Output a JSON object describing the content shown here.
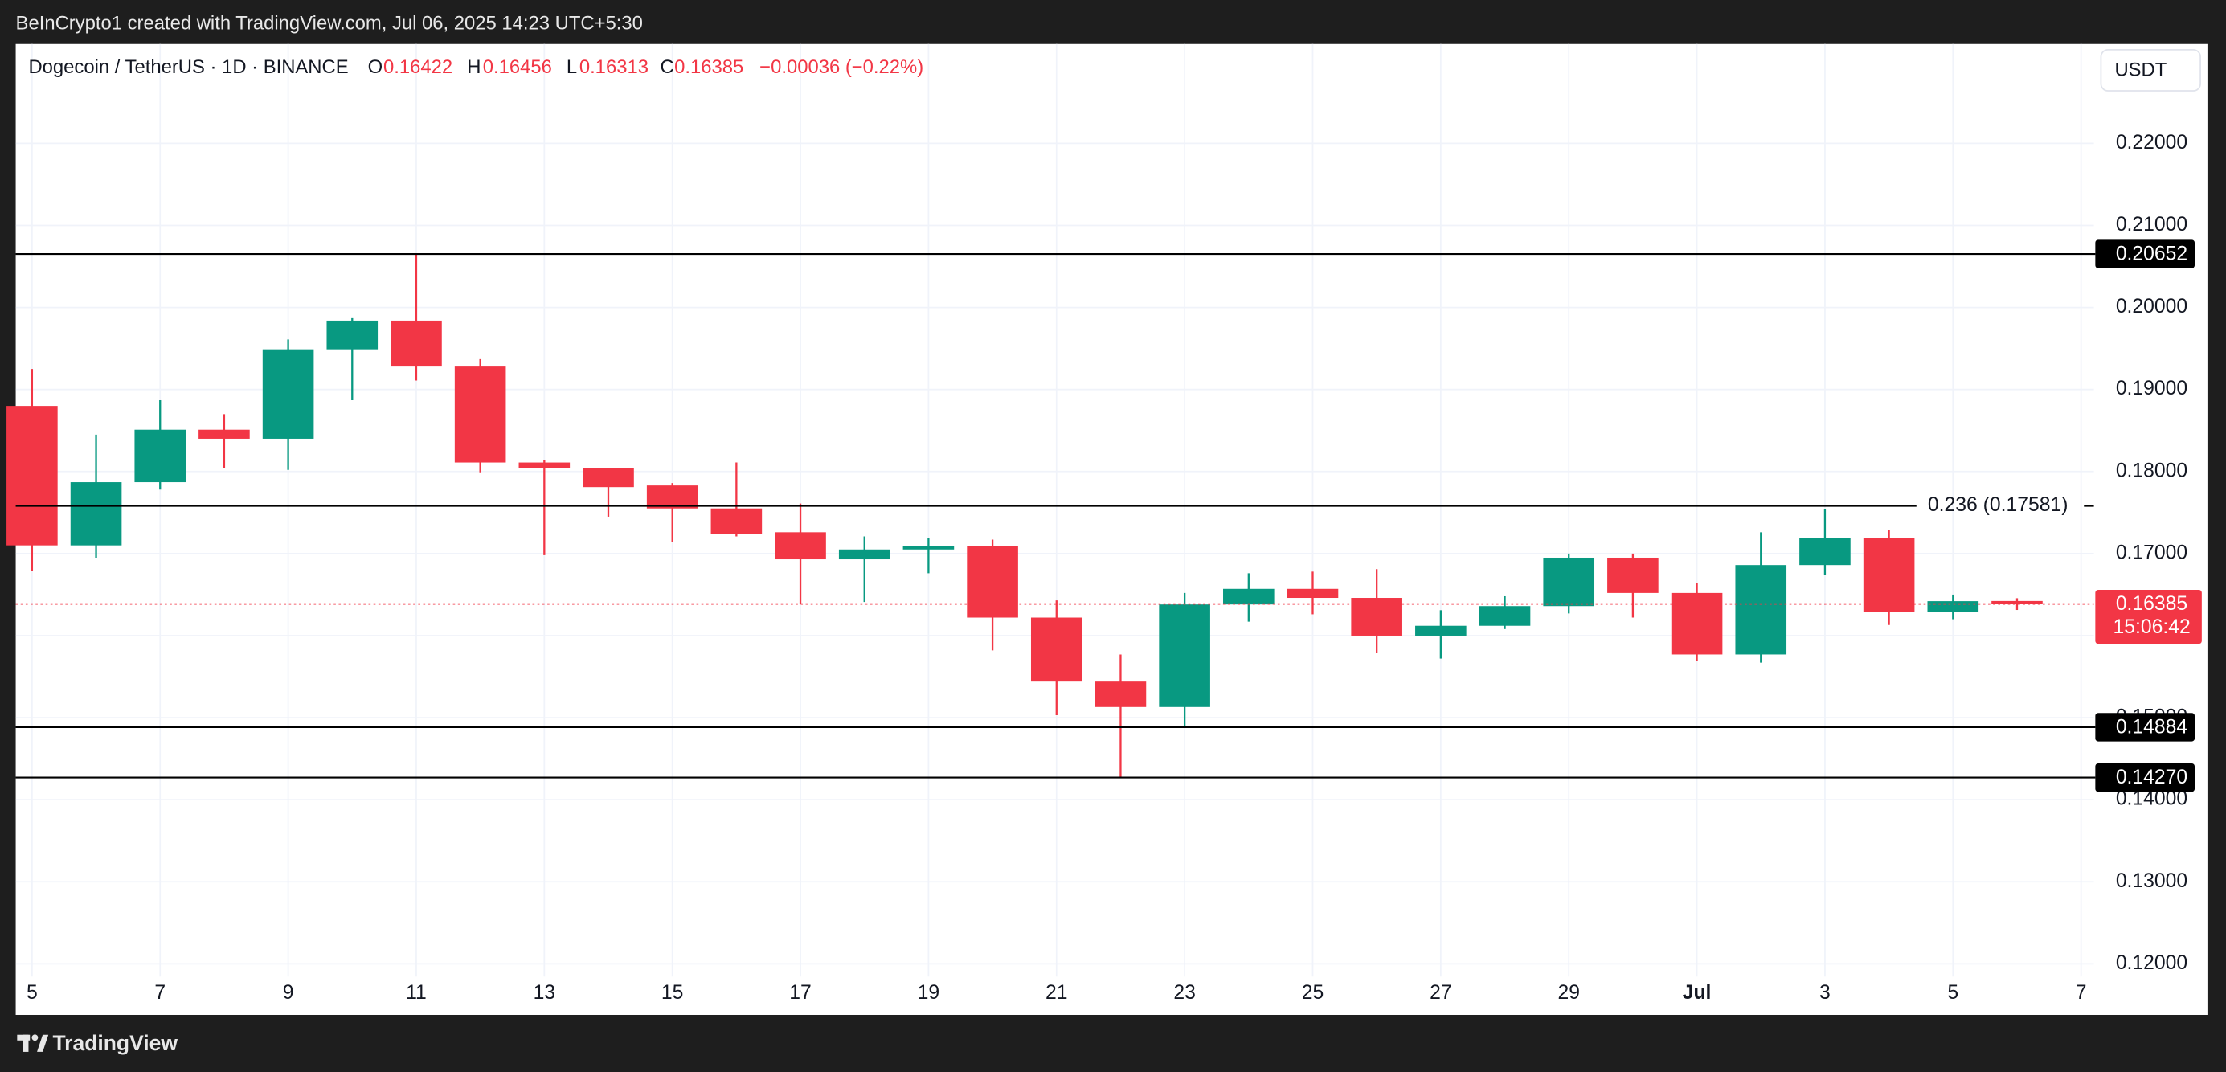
{
  "top_bar": "BeInCrypto1 created with TradingView.com, Jul 06, 2025 14:23 UTC+5:30",
  "footer": "TradingView",
  "chart_data": {
    "type": "candlestick",
    "title": "Dogecoin / TetherUS · 1D · BINANCE",
    "legend": {
      "o_label": "O",
      "open": 0.16422,
      "h_label": "H",
      "high": 0.16456,
      "l_label": "L",
      "low": 0.16313,
      "c_label": "C",
      "close": 0.16385,
      "change": "−0.00036 (−0.22%)"
    },
    "currency": "USDT",
    "open": [
      0.188,
      0.171,
      0.1787,
      0.1851,
      0.184,
      0.1949,
      0.1984,
      0.1928,
      0.1811,
      0.1804,
      0.1783,
      0.1755,
      0.1726,
      0.1693,
      0.1705,
      0.1709,
      0.1622,
      0.1544,
      0.1513,
      0.1638,
      0.1657,
      0.1646,
      0.16,
      0.1612,
      0.1636,
      0.1695,
      0.1652,
      0.1577,
      0.1686,
      0.1719,
      0.1629,
      0.16422
    ],
    "high": [
      0.1925,
      0.1845,
      0.1887,
      0.187,
      0.1961,
      0.1987,
      0.20652,
      0.1937,
      0.1814,
      0.1804,
      0.1786,
      0.1811,
      0.1761,
      0.1721,
      0.1719,
      0.1717,
      0.1643,
      0.1577,
      0.1652,
      0.1676,
      0.1678,
      0.1681,
      0.1631,
      0.1648,
      0.17,
      0.17,
      0.1664,
      0.1726,
      0.1754,
      0.1729,
      0.165,
      0.16456
    ],
    "low": [
      0.1679,
      0.1695,
      0.1778,
      0.1804,
      0.1802,
      0.1887,
      0.1911,
      0.1799,
      0.1698,
      0.1745,
      0.1714,
      0.1721,
      0.1639,
      0.1641,
      0.1676,
      0.1582,
      0.1503,
      0.1427,
      0.14884,
      0.1617,
      0.1626,
      0.1579,
      0.1572,
      0.1608,
      0.1627,
      0.1622,
      0.1569,
      0.1567,
      0.1674,
      0.1613,
      0.162,
      0.16313
    ],
    "close": [
      0.171,
      0.1787,
      0.1851,
      0.184,
      0.1949,
      0.1984,
      0.1928,
      0.1811,
      0.1804,
      0.1781,
      0.1755,
      0.1724,
      0.1693,
      0.1705,
      0.1709,
      0.1622,
      0.1544,
      0.1513,
      0.1638,
      0.1657,
      0.1646,
      0.16,
      0.1612,
      0.1636,
      0.1695,
      0.1652,
      0.1577,
      0.1686,
      0.1719,
      0.1629,
      0.1642,
      0.16385
    ],
    "up_color": "#089981",
    "down_color": "#f23645",
    "xlim": [
      -0.255,
      32.2
    ],
    "xticks": [
      {
        "value": 0,
        "label": "5"
      },
      {
        "value": 2,
        "label": "7"
      },
      {
        "value": 4,
        "label": "9"
      },
      {
        "value": 6,
        "label": "11"
      },
      {
        "value": 8,
        "label": "13"
      },
      {
        "value": 10,
        "label": "15"
      },
      {
        "value": 12,
        "label": "17"
      },
      {
        "value": 14,
        "label": "19"
      },
      {
        "value": 16,
        "label": "21"
      },
      {
        "value": 18,
        "label": "23"
      },
      {
        "value": 20,
        "label": "25"
      },
      {
        "value": 22,
        "label": "27"
      },
      {
        "value": 24,
        "label": "29"
      },
      {
        "value": 26,
        "label": "Jul"
      },
      {
        "value": 28,
        "label": "3"
      },
      {
        "value": 30,
        "label": "5"
      },
      {
        "value": 32,
        "label": "7"
      }
    ],
    "ylim": [
      0.11844,
      0.23211
    ],
    "yticks": [
      {
        "value": 0.12,
        "label": "0.12000"
      },
      {
        "value": 0.13,
        "label": "0.13000"
      },
      {
        "value": 0.14,
        "label": "0.14000"
      },
      {
        "value": 0.15,
        "label": "0.15000"
      },
      {
        "value": 0.16,
        "label": "0.16000"
      },
      {
        "value": 0.17,
        "label": "0.17000"
      },
      {
        "value": 0.18,
        "label": "0.18000"
      },
      {
        "value": 0.19,
        "label": "0.19000"
      },
      {
        "value": 0.2,
        "label": "0.20000"
      },
      {
        "value": 0.21,
        "label": "0.21000"
      },
      {
        "value": 0.22,
        "label": "0.22000"
      }
    ],
    "levels": [
      {
        "value": 0.20652,
        "style": "badge"
      },
      {
        "value": 0.17581,
        "label": "0.236 (0.17581)",
        "style": "inline"
      },
      {
        "value": 0.14884,
        "style": "badge"
      },
      {
        "value": 0.1427,
        "label": "0.14270",
        "style": "badge"
      }
    ],
    "last_price": {
      "value": 0.16385,
      "countdown": "15:06:42",
      "color": "#f23645"
    },
    "grid": true
  }
}
